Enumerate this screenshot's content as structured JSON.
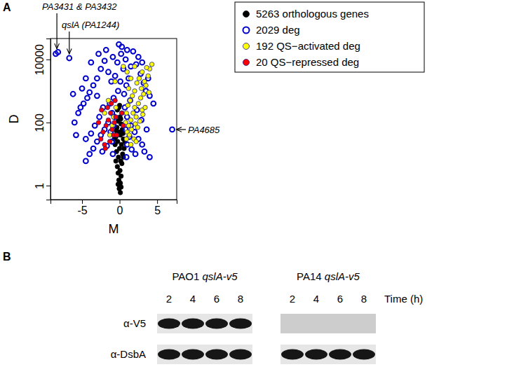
{
  "chart_data": {
    "type": "scatter",
    "panel_label": "A",
    "x_label": "M",
    "y_label": "D",
    "log": "y",
    "xlim": [
      -9.2,
      7.6
    ],
    "xticks": [
      -5,
      0,
      5
    ],
    "ylim": [
      0.36,
      46000
    ],
    "yticks": [
      1,
      100,
      10000
    ],
    "legend": "top-right",
    "series": [
      {
        "name": "5263 orthologous genes",
        "color": "#000000",
        "marker": "circle",
        "x": [
          0,
          0.1,
          -0.1,
          0.2,
          -0.2,
          0.05,
          -0.3,
          0.3,
          0.15,
          -0.15,
          0.4,
          -0.4,
          0,
          0.25,
          -0.25,
          0.5,
          -0.5,
          0.1,
          -0.1,
          0.35,
          -0.35,
          0.2,
          -0.2,
          0.05,
          0.3,
          -0.3,
          0,
          0.1,
          -0.05,
          0.6,
          -0.6,
          0.45,
          -0.45,
          0.15,
          -0.1,
          0.5,
          -0.5,
          0.2,
          -0.2,
          0.7,
          -0.7
        ],
        "values": [
          1,
          1.2,
          1.5,
          2,
          2.5,
          3,
          4,
          5,
          6,
          8,
          10,
          12,
          15,
          20,
          25,
          30,
          35,
          40,
          50,
          60,
          70,
          90,
          110,
          150,
          200,
          250,
          350,
          0.6,
          0.8,
          15,
          20,
          45,
          55,
          130,
          300,
          8,
          6,
          0.9,
          1.1,
          25,
          30
        ]
      },
      {
        "name": "2029 deg",
        "color": "#0000cd",
        "marker": "open_circle",
        "x": [
          0.2,
          -0.3,
          0.5,
          -0.6,
          0.1,
          -0.2,
          0.6,
          -0.8,
          0.9,
          1.2,
          -1.1,
          -1.5,
          1.5,
          0.8,
          -0.9,
          0.3,
          -0.1,
          1.0,
          -2.0,
          2.2,
          -2.5,
          2.8,
          -3.0,
          3.2,
          -3.5,
          3.5,
          -4.0,
          4.0,
          -4.3,
          -4.8,
          4.5,
          -5.2,
          -5.0,
          -3.8,
          -2.8,
          2.5,
          3.0,
          1.8,
          -1.8,
          -1.0,
          1.0,
          -1.5,
          1.5,
          -2.0,
          2.0,
          -2.5,
          2.5,
          -3.0,
          3.0,
          -3.5,
          3.3,
          -4.0,
          4.0,
          -4.5,
          -1.2,
          1.3,
          -0.8,
          0.8,
          -0.7,
          0.7,
          -1.3,
          1.4,
          -2.2,
          2.3,
          -2.7,
          2.9,
          -3.3,
          3.6,
          -3.8,
          -5.5,
          -6.0,
          -5.8,
          -4.5,
          -2.3,
          2.1,
          -1.7,
          1.6,
          -1.0,
          1.0,
          -0.9,
          0.9,
          -3.0,
          3.8,
          -4.5,
          -6.2,
          -8.5,
          -8.2,
          -6.7,
          7.0
        ],
        "values": [
          15000,
          8000,
          5000,
          3000,
          2000,
          1000,
          800,
          600,
          1500,
          2500,
          2000,
          4000,
          6000,
          10000,
          12000,
          25000,
          30000,
          20000,
          9000,
          7000,
          5000,
          3500,
          2500,
          1800,
          1500,
          1000,
          900,
          700,
          600,
          400,
          400,
          300,
          1200,
          8000,
          15000,
          12000,
          8000,
          18000,
          20000,
          200,
          150,
          100,
          80,
          60,
          50,
          40,
          30,
          25,
          20,
          15,
          12,
          10,
          8,
          6,
          50,
          35,
          80,
          60,
          150,
          300,
          400,
          500,
          300,
          250,
          150,
          120,
          80,
          60,
          45,
          200,
          100,
          40,
          30,
          12,
          10,
          18,
          14,
          25,
          20,
          10,
          8,
          700,
          2500,
          2500,
          800,
          15000,
          17000,
          11000,
          60
        ]
      },
      {
        "name": "192 QS−activated deg",
        "color": "#ffff00",
        "marker": "circle",
        "x": [
          1.0,
          1.2,
          1.5,
          1.8,
          2.0,
          2.2,
          2.5,
          2.8,
          3.0,
          3.2,
          3.5,
          3.8,
          4.0,
          4.3,
          3.6,
          3.0,
          2.6,
          2.3,
          2.0,
          1.7,
          1.4,
          1.1,
          0.9,
          0.8,
          1.3,
          1.6,
          2.1,
          2.4,
          2.7,
          3.1,
          3.4,
          1.9,
          2.2,
          1.5,
          0.9,
          -0.5,
          -0.8,
          -1.0,
          -1.3,
          -0.6,
          -1.5,
          -2.0,
          0.5,
          1.0,
          1.5,
          2.0,
          3.3,
          2.9,
          1.2,
          3.9
        ],
        "values": [
          50,
          80,
          120,
          200,
          300,
          150,
          400,
          600,
          250,
          800,
          1500,
          3000,
          5000,
          7000,
          5500,
          4000,
          2500,
          1800,
          1000,
          700,
          500,
          350,
          200,
          100,
          40,
          60,
          90,
          70,
          110,
          180,
          300,
          30,
          25,
          20,
          30,
          300,
          150,
          80,
          40,
          2000,
          500,
          200,
          6000,
          4000,
          2500,
          6000,
          2000,
          1200,
          1200,
          900
        ]
      },
      {
        "name": "20 QS−repressed deg",
        "color": "#ff0000",
        "marker": "circle",
        "x": [
          -2.5,
          -2.2,
          -1.8,
          -1.5,
          -1.2,
          -1.0,
          -0.8,
          -2.0,
          -1.6,
          -0.6,
          -0.5,
          -1.3,
          -2.8,
          -1.9,
          0.3,
          0.5,
          -0.4,
          -1.1,
          -0.7,
          -2.4
        ],
        "values": [
          30,
          50,
          80,
          120,
          200,
          60,
          40,
          20,
          300,
          500,
          150,
          25,
          100,
          15,
          200,
          80,
          40,
          400,
          100,
          250
        ]
      }
    ],
    "annotations": [
      {
        "text": "PA3431 & PA3432",
        "x": -8.35,
        "y": 16000
      },
      {
        "text": "qslA (PA1244)",
        "x": -6.7,
        "y": 11000
      },
      {
        "text": "PA4685",
        "x": 7.0,
        "y": 60
      }
    ]
  },
  "blot": {
    "panel_label": "B",
    "strains": [
      "PAO1 qslA-v5",
      "PA14 qslA-v5"
    ],
    "times": [
      2,
      4,
      6,
      8
    ],
    "time_label": "Time (h)",
    "rows": [
      {
        "antibody": "α-V5",
        "bands": [
          [
            true,
            true,
            true,
            true
          ],
          [
            false,
            false,
            false,
            false
          ]
        ]
      },
      {
        "antibody": "α-DsbA",
        "bands": [
          [
            true,
            true,
            true,
            true
          ],
          [
            true,
            true,
            true,
            true
          ]
        ]
      }
    ]
  }
}
